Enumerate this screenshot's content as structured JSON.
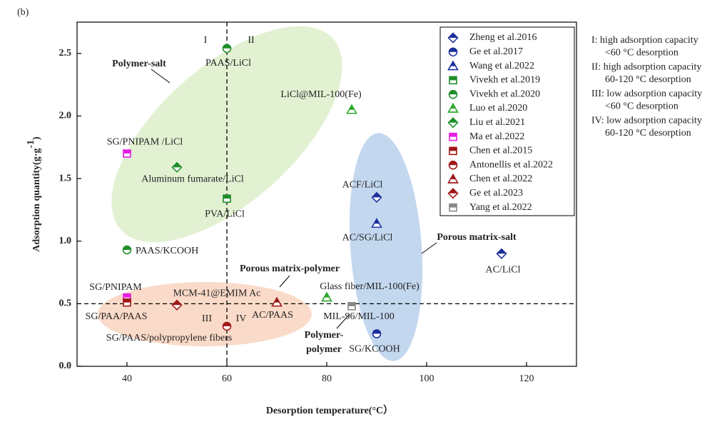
{
  "chart_data": {
    "type": "scatter",
    "panel_label": "(b)",
    "xlabel": "Desorption temperature(°C）",
    "ylabel": "Adsorption quantity(g·g",
    "ylabel_sup": "-1",
    "ylabel_end": ")",
    "xlim": [
      30,
      130
    ],
    "ylim": [
      0,
      2.75
    ],
    "xticks": [
      40,
      60,
      80,
      100,
      120
    ],
    "yticks": [
      {
        "value": 0,
        "label": "0.0"
      },
      0.5,
      {
        "value": 1,
        "label": "1.0"
      },
      1.5,
      {
        "value": 2,
        "label": "2.0"
      },
      2.5
    ],
    "reference_x": 60,
    "reference_y": 0.5,
    "legend": "upper right",
    "series": [
      {
        "name": "Zheng et al.2016",
        "color": "#1c2f9c",
        "marker": "diamond",
        "x": [
          90,
          115
        ],
        "values": [
          1.35,
          0.9
        ],
        "labels": [
          "ACF/LiCl",
          "AC/LiCl"
        ]
      },
      {
        "name": "Ge et al.2017",
        "color": "#1c2f9c",
        "marker": "circle",
        "x": [
          90
        ],
        "values": [
          0.26
        ],
        "labels": [
          "SG/KCOOH"
        ]
      },
      {
        "name": "Wang et al.2022",
        "color": "#1c2f9c",
        "marker": "triangle",
        "x": [
          90
        ],
        "values": [
          1.14
        ],
        "labels": [
          "AC/SG/LiCl"
        ]
      },
      {
        "name": "Vivekh et al.2019",
        "color": "#1f8f2a",
        "marker": "square",
        "x": [
          60
        ],
        "values": [
          1.34
        ],
        "labels": [
          "PVA/LiCl"
        ]
      },
      {
        "name": "Vivekh et al.2020",
        "color": "#1f8f2a",
        "marker": "circle",
        "x": [
          60,
          40
        ],
        "values": [
          2.54,
          0.93
        ],
        "labels": [
          "PAAS/LiCl",
          "PAAS/KCOOH"
        ]
      },
      {
        "name": "Luo et al.2020",
        "color": "#2aa82a",
        "marker": "triangle",
        "x": [
          85,
          80
        ],
        "values": [
          2.05,
          0.55
        ],
        "labels": [
          "LiCl@MIL-100(Fe)",
          "Glass fiber/MIL-100(Fe)"
        ]
      },
      {
        "name": "Liu et al.2021",
        "color": "#1f8f2a",
        "marker": "diamond",
        "x": [
          50
        ],
        "values": [
          1.59
        ],
        "labels": [
          "Aluminum fumarate/LiCl"
        ]
      },
      {
        "name": "Ma et al.2022",
        "color": "#e61ee6",
        "marker": "square",
        "x": [
          40,
          40
        ],
        "values": [
          1.7,
          0.55
        ],
        "labels": [
          "SG/PNIPAM /LiCl",
          "SG/PNIPAM"
        ]
      },
      {
        "name": "Chen et al.2015",
        "color": "#a01818",
        "marker": "square",
        "x": [
          40
        ],
        "values": [
          0.51
        ],
        "labels": [
          "SG/PAA/PAAS"
        ]
      },
      {
        "name": "Antonellis et al.2022",
        "color": "#a01818",
        "marker": "circle",
        "x": [
          60
        ],
        "values": [
          0.32
        ],
        "labels": [
          "SG/PAAS/polypropylene fibers"
        ]
      },
      {
        "name": "Chen et al.2022",
        "color": "#a01818",
        "marker": "triangle",
        "x": [
          70
        ],
        "values": [
          0.51
        ],
        "labels": [
          "AC/PAAS"
        ]
      },
      {
        "name": "Ge et al.2023",
        "color": "#a01818",
        "marker": "diamond",
        "x": [
          50
        ],
        "values": [
          0.49
        ],
        "labels": [
          "MCM-41@EMIM Ac"
        ]
      },
      {
        "name": "Yang et al.2022",
        "color": "#888888",
        "marker": "square",
        "x": [
          85
        ],
        "values": [
          0.48
        ],
        "labels": [
          "MIL-96/MIL-100"
        ]
      }
    ],
    "annotations": {
      "polymer_salt": "Polymer-salt",
      "porous_matrix_salt": "Porous matrix-salt",
      "porous_matrix_polymer": "Porous matrix-polymer",
      "polymer_polymer": [
        "Polymer-",
        "polymer"
      ]
    },
    "regions": [
      "I",
      "II",
      "III",
      "IV"
    ],
    "notes": [
      [
        "I:  high adsorption capacity",
        "<60 °C desorption"
      ],
      [
        "II:  high adsorption capacity",
        "60-120  °C desorption"
      ],
      [
        "III:  low adsorption capacity",
        "<60 °C desorption"
      ],
      [
        "IV: low adsorption capacity",
        "60-120  °C desorption"
      ]
    ]
  }
}
